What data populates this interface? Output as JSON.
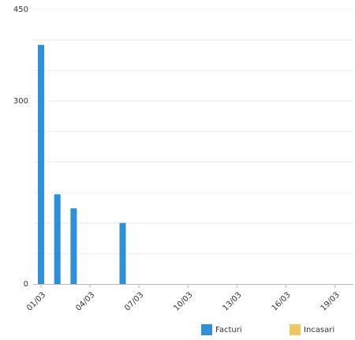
{
  "chart_data": {
    "type": "bar",
    "categories": [
      "01/03",
      null,
      null,
      "04/03",
      null,
      null,
      "07/03",
      null,
      null,
      "10/03",
      null,
      null,
      "13/03",
      null,
      null,
      "16/03",
      null,
      null,
      "19/03",
      null
    ],
    "series": [
      {
        "name": "Facturi",
        "color": "#2e8fdb",
        "values": [
          392,
          147,
          124,
          0,
          0,
          100,
          0,
          0,
          0,
          0,
          0,
          0,
          0,
          0,
          0,
          0,
          0,
          0,
          0,
          0
        ]
      },
      {
        "name": "Incasari",
        "color": "#f0c75e",
        "values": [
          0,
          0,
          0,
          0,
          0,
          0,
          0,
          0,
          0,
          0,
          0,
          0,
          0,
          0,
          0,
          0,
          0,
          0,
          0,
          0
        ]
      }
    ],
    "ylim": [
      0,
      450
    ],
    "yticks": [
      0,
      300,
      450
    ],
    "ygrid": [
      50,
      100,
      150,
      200,
      250,
      300,
      350,
      400,
      450
    ],
    "grid": true,
    "legend": "bottom"
  }
}
